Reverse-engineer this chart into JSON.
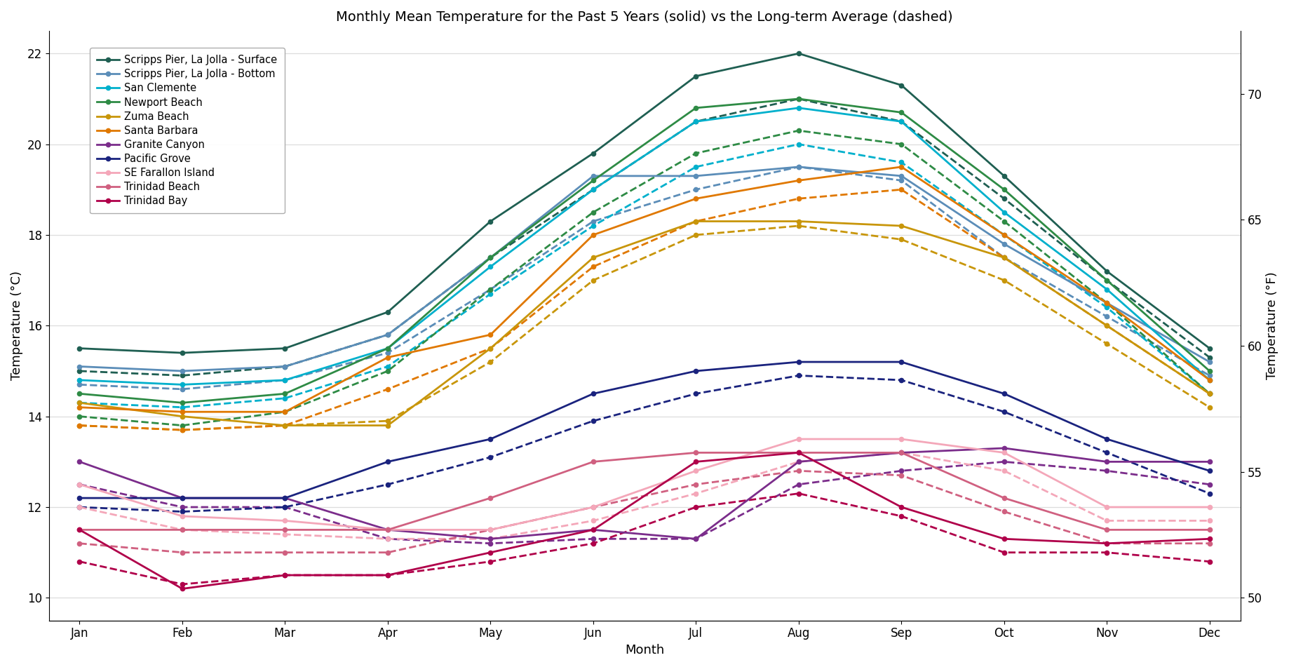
{
  "title": "Monthly Mean Temperature for the Past 5 Years (solid) vs the Long-term Average (dashed)",
  "xlabel": "Month",
  "ylabel_left": "Temperature (°C)",
  "ylabel_right": "Temperature (°F)",
  "months": [
    "Jan",
    "Feb",
    "Mar",
    "Apr",
    "May",
    "Jun",
    "Jul",
    "Aug",
    "Sep",
    "Oct",
    "Nov",
    "Dec"
  ],
  "ylim": [
    9.5,
    22.5
  ],
  "yticks_c": [
    10,
    12,
    14,
    16,
    18,
    20,
    22
  ],
  "yticks_f": [
    50,
    55,
    60,
    65,
    70
  ],
  "stations": [
    {
      "name": "Scripps Pier, La Jolla - Surface",
      "color": "#1f5f52",
      "solid": [
        15.5,
        15.4,
        15.5,
        16.3,
        18.3,
        19.8,
        21.5,
        22.0,
        21.3,
        19.3,
        17.2,
        15.5
      ],
      "dashed": [
        15.0,
        14.9,
        15.1,
        15.8,
        17.5,
        19.0,
        20.5,
        21.0,
        20.5,
        18.8,
        17.0,
        15.3
      ]
    },
    {
      "name": "Scripps Pier, La Jolla - Bottom",
      "color": "#5b8db8",
      "solid": [
        15.1,
        15.0,
        15.1,
        15.8,
        17.5,
        19.3,
        19.3,
        19.5,
        19.3,
        17.8,
        16.5,
        15.2
      ],
      "dashed": [
        14.7,
        14.6,
        14.8,
        15.4,
        16.8,
        18.3,
        19.0,
        19.5,
        19.2,
        17.5,
        16.2,
        14.9
      ]
    },
    {
      "name": "San Clemente",
      "color": "#00b0cc",
      "solid": [
        14.8,
        14.7,
        14.8,
        15.5,
        17.3,
        19.0,
        20.5,
        20.8,
        20.5,
        18.5,
        16.8,
        14.8
      ],
      "dashed": [
        14.3,
        14.2,
        14.4,
        15.1,
        16.7,
        18.2,
        19.5,
        20.0,
        19.6,
        18.0,
        16.4,
        14.5
      ]
    },
    {
      "name": "Newport Beach",
      "color": "#2e8b45",
      "solid": [
        14.5,
        14.3,
        14.5,
        15.5,
        17.5,
        19.2,
        20.8,
        21.0,
        20.7,
        19.0,
        17.0,
        15.0
      ],
      "dashed": [
        14.0,
        13.8,
        14.1,
        15.0,
        16.8,
        18.5,
        19.8,
        20.3,
        20.0,
        18.3,
        16.5,
        14.5
      ]
    },
    {
      "name": "Zuma Beach",
      "color": "#c8960a",
      "solid": [
        14.3,
        14.0,
        13.8,
        13.8,
        15.5,
        17.5,
        18.3,
        18.3,
        18.2,
        17.5,
        16.0,
        14.5
      ],
      "dashed": [
        13.8,
        13.7,
        13.8,
        13.9,
        15.2,
        17.0,
        18.0,
        18.2,
        17.9,
        17.0,
        15.6,
        14.2
      ]
    },
    {
      "name": "Santa Barbara",
      "color": "#e07800",
      "solid": [
        14.2,
        14.1,
        14.1,
        15.3,
        15.8,
        18.0,
        18.8,
        19.2,
        19.5,
        18.0,
        16.5,
        14.8
      ],
      "dashed": [
        13.8,
        13.7,
        13.8,
        14.6,
        15.5,
        17.3,
        18.3,
        18.8,
        19.0,
        17.5,
        16.0,
        14.5
      ]
    },
    {
      "name": "Granite Canyon",
      "color": "#7b2d8b",
      "solid": [
        13.0,
        12.2,
        12.2,
        11.5,
        11.3,
        11.5,
        11.3,
        13.0,
        13.2,
        13.3,
        13.0,
        13.0
      ],
      "dashed": [
        12.5,
        12.0,
        12.0,
        11.3,
        11.2,
        11.3,
        11.3,
        12.5,
        12.8,
        13.0,
        12.8,
        12.5
      ]
    },
    {
      "name": "Pacific Grove",
      "color": "#1a237e",
      "solid": [
        12.2,
        12.2,
        12.2,
        13.0,
        13.5,
        14.5,
        15.0,
        15.2,
        15.2,
        14.5,
        13.5,
        12.8
      ],
      "dashed": [
        12.0,
        11.9,
        12.0,
        12.5,
        13.1,
        13.9,
        14.5,
        14.9,
        14.8,
        14.1,
        13.2,
        12.3
      ]
    },
    {
      "name": "SE Farallon Island",
      "color": "#f4a7b9",
      "solid": [
        12.5,
        11.8,
        11.7,
        11.5,
        11.5,
        12.0,
        12.8,
        13.5,
        13.5,
        13.2,
        12.0,
        12.0
      ],
      "dashed": [
        12.0,
        11.5,
        11.4,
        11.3,
        11.3,
        11.7,
        12.3,
        13.0,
        13.2,
        12.8,
        11.7,
        11.7
      ]
    },
    {
      "name": "Trinidad Beach",
      "color": "#d06080",
      "solid": [
        11.5,
        11.5,
        11.5,
        11.5,
        12.2,
        13.0,
        13.2,
        13.2,
        13.2,
        12.2,
        11.5,
        11.5
      ],
      "dashed": [
        11.2,
        11.0,
        11.0,
        11.0,
        11.5,
        12.0,
        12.5,
        12.8,
        12.7,
        11.9,
        11.2,
        11.2
      ]
    },
    {
      "name": "Trinidad Bay",
      "color": "#b0004a",
      "solid": [
        11.5,
        10.2,
        10.5,
        10.5,
        11.0,
        11.5,
        13.0,
        13.2,
        12.0,
        11.3,
        11.2,
        11.3
      ],
      "dashed": [
        10.8,
        10.3,
        10.5,
        10.5,
        10.8,
        11.2,
        12.0,
        12.3,
        11.8,
        11.0,
        11.0,
        10.8
      ]
    }
  ]
}
